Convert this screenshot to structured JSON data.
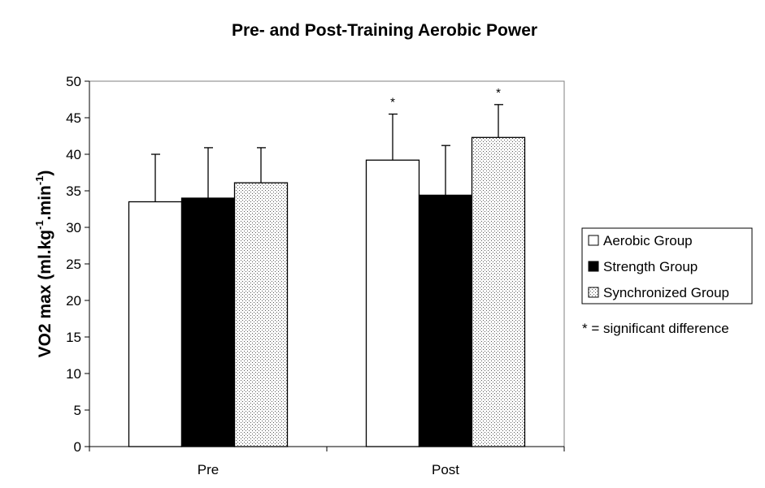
{
  "chart_data": {
    "type": "bar",
    "title": "Pre- and Post-Training Aerobic Power",
    "ylabel": {
      "main": "VO2 max (ml.kg",
      "sup1": "-1",
      "mid": ".min",
      "sup2": "-1",
      "end": ")"
    },
    "xlabel": "",
    "categories": [
      "Pre",
      "Post"
    ],
    "ylim": [
      0,
      50
    ],
    "yticks": [
      "0",
      "5",
      "10",
      "15",
      "20",
      "25",
      "30",
      "35",
      "40",
      "45",
      "50"
    ],
    "grid": false,
    "legend_position": "right",
    "series": [
      {
        "name": "Aerobic Group",
        "values": [
          33.5,
          39.2
        ],
        "error": [
          6.5,
          6.3
        ],
        "fill": "white",
        "significant": [
          false,
          true
        ]
      },
      {
        "name": "Strength Group",
        "values": [
          34.0,
          34.4
        ],
        "error": [
          6.9,
          6.8
        ],
        "fill": "black",
        "significant": [
          false,
          false
        ]
      },
      {
        "name": "Synchronized Group",
        "values": [
          36.1,
          42.3
        ],
        "error": [
          4.8,
          4.5
        ],
        "fill": "dotted",
        "significant": [
          false,
          true
        ]
      }
    ],
    "significance_marker": "*",
    "note": "* = significant difference"
  },
  "colors": {
    "bar_outline": "#000000",
    "aerobic_fill": "#ffffff",
    "strength_fill": "#000000",
    "synchronized_fill": "#e8e8e8",
    "dot": "#555555"
  }
}
